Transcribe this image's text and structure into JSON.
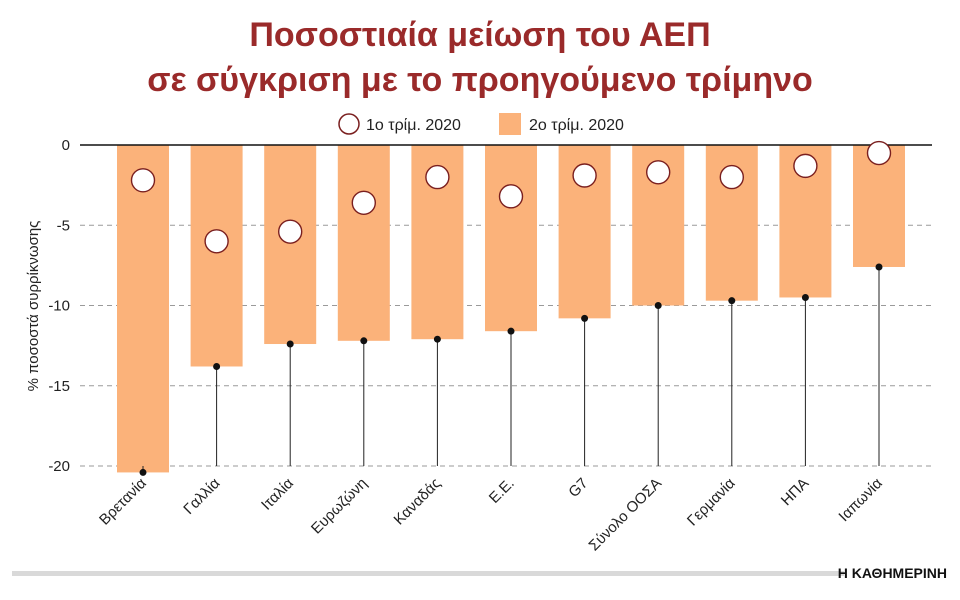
{
  "chart_data": {
    "type": "bar",
    "title_line1": "Ποσοστιαία μείωση του ΑΕΠ",
    "title_line2": "σε σύγκριση με το προηγούμενο τρίμηνο",
    "ylabel": "% ποσοστά συρρίκνωσης",
    "xlabel": "",
    "ylim": [
      -20,
      0
    ],
    "yticks": [
      0,
      -5,
      -10,
      -15,
      -20
    ],
    "grid": true,
    "legend_position": "top-center",
    "categories": [
      "Βρετανία",
      "Γαλλία",
      "Ιταλία",
      "Ευρωζώνη",
      "Καναδάς",
      "Ε.Ε.",
      "G7",
      "Σύνολο ΟΟΣΑ",
      "Γερμανία",
      "ΗΠΑ",
      "Ιαπωνία"
    ],
    "series": [
      {
        "name": "1ο τρίμ. 2020",
        "kind": "marker",
        "color": "#7a1f1f",
        "values": [
          -2.2,
          -6.0,
          -5.4,
          -3.6,
          -2.0,
          -3.2,
          -1.9,
          -1.7,
          -2.0,
          -1.3,
          -0.5
        ]
      },
      {
        "name": "2ο τρίμ. 2020",
        "kind": "bar",
        "color": "#fbb27a",
        "values": [
          -20.4,
          -13.8,
          -12.4,
          -12.2,
          -12.1,
          -11.6,
          -10.8,
          -10.0,
          -9.7,
          -9.5,
          -7.6
        ]
      }
    ]
  },
  "colors": {
    "title": "#9a2a2a",
    "bar": "#fbb27a",
    "marker_ring": "#7a1f1f",
    "grid": "#9a9a9a",
    "footer_rule": "#d9d9d9"
  },
  "credit": "Η ΚΑΘΗΜΕΡΙΝΗ"
}
